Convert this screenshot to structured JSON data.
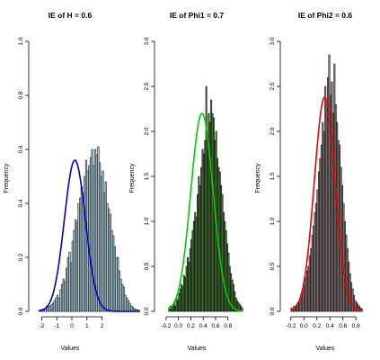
{
  "chart_data": [
    {
      "type": "histogram",
      "title": "IE of H = 0.6",
      "xlabel": "Values",
      "ylabel": "Frequency",
      "xlim": [
        -2.5,
        2.5
      ],
      "ylim": [
        0,
        1.0
      ],
      "xticks": [
        -2,
        -1,
        0,
        1,
        2
      ],
      "yticks": [
        0.0,
        0.2,
        0.4,
        0.6,
        0.8,
        1.0
      ],
      "bar_fill": "#a9c9d4",
      "curve_color": "#0000cc",
      "bin_width": 0.1,
      "bins_start": -2.2,
      "frequencies": [
        0.004,
        0.006,
        0.008,
        0.01,
        0.012,
        0.02,
        0.018,
        0.02,
        0.024,
        0.03,
        0.04,
        0.05,
        0.06,
        0.05,
        0.08,
        0.1,
        0.12,
        0.11,
        0.16,
        0.2,
        0.22,
        0.18,
        0.26,
        0.3,
        0.34,
        0.33,
        0.4,
        0.42,
        0.46,
        0.44,
        0.5,
        0.56,
        0.52,
        0.54,
        0.57,
        0.6,
        0.54,
        0.6,
        0.58,
        0.61,
        0.55,
        0.5,
        0.52,
        0.44,
        0.48,
        0.4,
        0.38,
        0.36,
        0.3,
        0.28,
        0.24,
        0.2,
        0.2,
        0.15,
        0.12,
        0.1,
        0.09,
        0.06,
        0.05,
        0.04,
        0.03,
        0.02,
        0.015,
        0.01,
        0.008,
        0.006,
        0.004
      ],
      "curve_mean": 0.2,
      "curve_sd": 0.7,
      "curve_peak": 0.56
    },
    {
      "type": "histogram",
      "title": "IE of Phi1 = 0.7",
      "xlabel": "Values",
      "ylabel": "Frequency",
      "xlim": [
        -0.3,
        0.92
      ],
      "ylim": [
        0,
        3.0
      ],
      "xticks": [
        -0.2,
        0.0,
        0.2,
        0.4,
        0.6,
        0.8
      ],
      "yticks": [
        0.0,
        0.5,
        1.0,
        1.5,
        2.0,
        2.5,
        3.0
      ],
      "bar_fill": "#4a7a3a",
      "curve_color": "#00cc00",
      "bin_width": 0.02,
      "bins_start": -0.16,
      "frequencies": [
        0.04,
        0.06,
        0.04,
        0.08,
        0.1,
        0.06,
        0.15,
        0.12,
        0.2,
        0.25,
        0.3,
        0.28,
        0.4,
        0.38,
        0.5,
        0.6,
        0.55,
        0.7,
        0.8,
        0.9,
        1.0,
        1.1,
        1.05,
        1.3,
        1.5,
        1.4,
        1.6,
        1.8,
        1.75,
        1.9,
        2.5,
        1.95,
        2.2,
        2.1,
        2.35,
        2.2,
        2.15,
        1.9,
        2.0,
        1.7,
        1.6,
        1.55,
        1.4,
        1.3,
        1.1,
        1.0,
        0.9,
        0.75,
        0.65,
        0.5,
        0.42,
        0.35,
        0.3,
        0.22,
        0.15,
        0.12,
        0.1,
        0.08,
        0.06,
        0.04
      ],
      "curve_mean": 0.38,
      "curve_sd": 0.18,
      "curve_peak": 2.2
    },
    {
      "type": "histogram",
      "title": "IE of Phi2 = 0.6",
      "xlabel": "Values",
      "ylabel": "Frequency",
      "xlim": [
        -0.28,
        0.88
      ],
      "ylim": [
        0,
        3.0
      ],
      "xticks": [
        -0.2,
        0.0,
        0.2,
        0.4,
        0.6,
        0.8
      ],
      "yticks": [
        0.0,
        0.5,
        1.0,
        1.5,
        2.0,
        2.5,
        3.0
      ],
      "bar_fill": "#8a7a7a",
      "curve_color": "#ee0000",
      "bin_width": 0.02,
      "bins_start": -0.2,
      "frequencies": [
        0.04,
        0.03,
        0.06,
        0.05,
        0.08,
        0.1,
        0.12,
        0.15,
        0.2,
        0.25,
        0.3,
        0.38,
        0.45,
        0.5,
        0.62,
        0.7,
        0.85,
        0.95,
        1.1,
        1.2,
        1.35,
        1.55,
        1.7,
        1.85,
        2.1,
        2.0,
        2.5,
        2.3,
        2.6,
        2.85,
        2.4,
        2.55,
        2.2,
        2.75,
        2.3,
        2.1,
        1.9,
        1.85,
        1.6,
        1.4,
        1.2,
        1.0,
        0.85,
        0.7,
        0.55,
        0.42,
        0.32,
        0.25,
        0.18,
        0.12,
        0.1,
        0.08,
        0.06,
        0.04,
        0.03
      ],
      "curve_mean": 0.32,
      "curve_sd": 0.16,
      "curve_peak": 2.38
    }
  ]
}
